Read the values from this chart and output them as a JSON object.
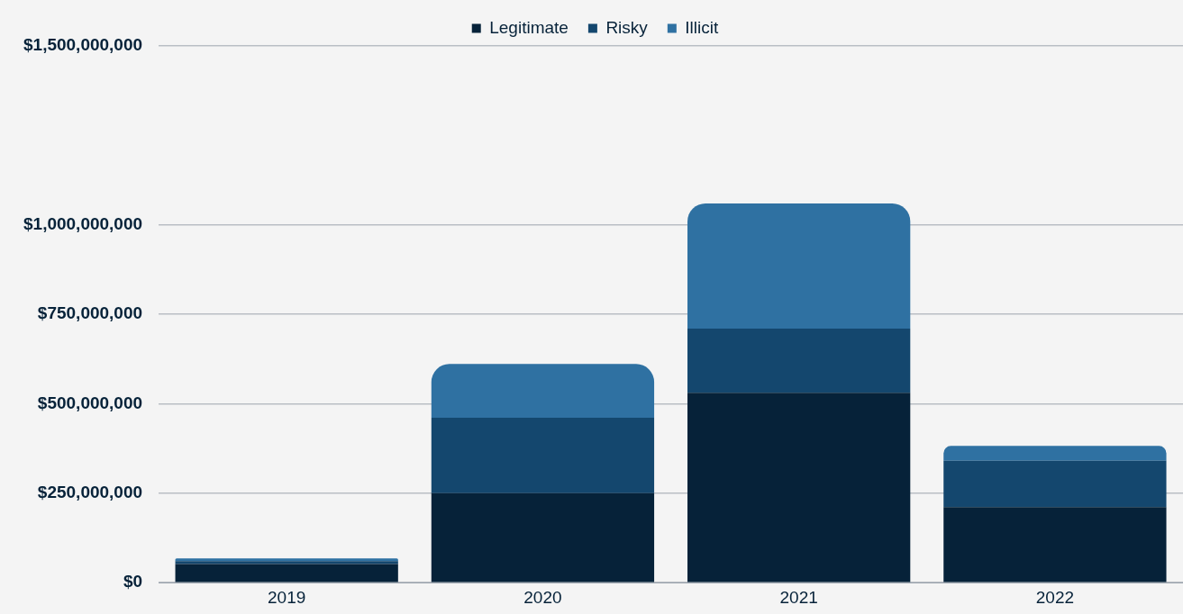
{
  "chart_data": {
    "type": "bar",
    "stacked": true,
    "categories": [
      "2019",
      "2020",
      "2021",
      "2022"
    ],
    "series": [
      {
        "name": "Legitimate",
        "color": "#062239",
        "values": [
          52000000,
          250000000,
          531000000,
          211000000
        ]
      },
      {
        "name": "Risky",
        "color": "#14476e",
        "values": [
          8000000,
          211000000,
          179000000,
          130000000
        ]
      },
      {
        "name": "Illicit",
        "color": "#2f71a2",
        "values": [
          8000000,
          150000000,
          350000000,
          41000000
        ]
      }
    ],
    "ylim": [
      0,
      1500000000
    ],
    "yticks": [
      {
        "value": 0,
        "label": "$0"
      },
      {
        "value": 250000000,
        "label": "$250,000,000"
      },
      {
        "value": 500000000,
        "label": "$500,000,000"
      },
      {
        "value": 750000000,
        "label": "$750,000,000"
      },
      {
        "value": 1000000000,
        "label": "$1,000,000,000"
      },
      {
        "value": 1500000000,
        "label": "$1,500,000,000"
      }
    ],
    "grid": "y",
    "legend": "top"
  }
}
